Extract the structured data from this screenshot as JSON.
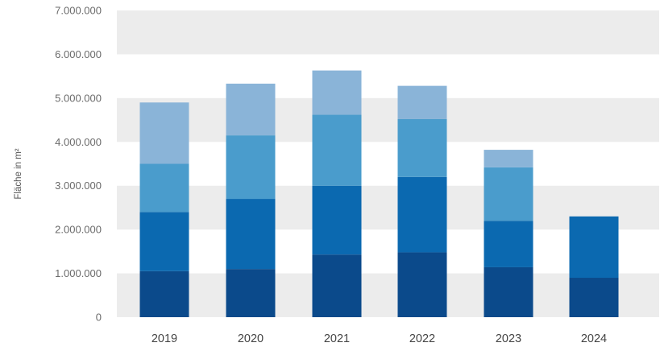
{
  "chart_data": {
    "type": "bar",
    "stacked": true,
    "categories": [
      "2019",
      "2020",
      "2021",
      "2022",
      "2023",
      "2024"
    ],
    "series": [
      {
        "values": [
          1050000,
          1100000,
          1430000,
          1480000,
          1140000,
          900000
        ],
        "color": "#0b4a8b"
      },
      {
        "values": [
          1350000,
          1600000,
          1570000,
          1720000,
          1060000,
          1400000
        ],
        "color": "#0b69b0"
      },
      {
        "values": [
          1100000,
          1450000,
          1620000,
          1320000,
          1220000,
          0
        ],
        "color": "#4a9ccc"
      },
      {
        "values": [
          1400000,
          1180000,
          1010000,
          760000,
          400000,
          0
        ],
        "color": "#8ab4d8"
      }
    ],
    "ylabel": "Fläche in m²",
    "ylim": [
      0,
      7000000
    ],
    "yticks": [
      0,
      1000000,
      2000000,
      3000000,
      4000000,
      5000000,
      6000000,
      7000000
    ],
    "ytick_labels": [
      "0",
      "1.000.000",
      "2.000.000",
      "3.000.000",
      "4.000.000",
      "5.000.000",
      "6.000.000",
      "7.000.000"
    ],
    "grid": "alternating bands",
    "band_color": "#ececec",
    "legend": "none"
  }
}
